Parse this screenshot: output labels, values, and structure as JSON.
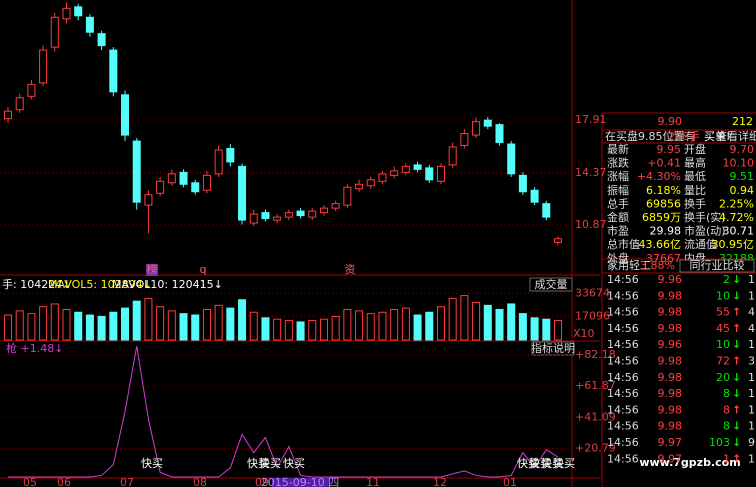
{
  "chart_data": [
    {
      "type": "candlestick",
      "candles": {
        "open": [
          18.0,
          18.6,
          19.5,
          20.4,
          22.8,
          24.7,
          25.5,
          24.8,
          23.7,
          22.6,
          19.6,
          16.5,
          12.2,
          13.0,
          13.7,
          14.4,
          13.7,
          13.2,
          14.3,
          16.0,
          14.8,
          11.0,
          11.7,
          11.2,
          11.4,
          11.8,
          11.4,
          11.7,
          12.0,
          12.2,
          13.3,
          13.5,
          13.8,
          14.2,
          14.4,
          14.9,
          14.7,
          13.8,
          14.9,
          16.2,
          16.9,
          17.9,
          17.6,
          16.3,
          14.2,
          13.2,
          12.3,
          9.7
        ],
        "high": [
          18.8,
          19.7,
          20.6,
          22.9,
          25.1,
          25.8,
          25.7,
          25.0,
          23.9,
          22.8,
          19.9,
          16.7,
          13.2,
          14.1,
          14.6,
          14.6,
          13.9,
          14.5,
          16.2,
          16.3,
          15.0,
          11.9,
          11.9,
          11.6,
          11.9,
          12.0,
          12.0,
          12.2,
          12.5,
          13.6,
          13.9,
          14.1,
          14.5,
          14.8,
          15.0,
          15.1,
          14.9,
          15.0,
          16.4,
          17.3,
          18.1,
          18.1,
          17.7,
          16.5,
          14.4,
          13.4,
          12.5,
          10.1
        ],
        "low": [
          17.7,
          18.4,
          19.3,
          20.2,
          22.5,
          24.4,
          24.6,
          23.5,
          22.6,
          19.5,
          16.5,
          11.9,
          10.3,
          12.8,
          13.5,
          13.4,
          12.9,
          13.0,
          14.1,
          14.8,
          10.9,
          10.8,
          11.1,
          11.0,
          11.2,
          11.3,
          11.2,
          11.5,
          11.8,
          12.0,
          13.1,
          13.3,
          13.6,
          14.0,
          14.2,
          14.4,
          13.7,
          13.6,
          14.7,
          16.0,
          16.7,
          17.3,
          16.2,
          14.1,
          12.9,
          12.2,
          11.2,
          9.51
        ],
        "close": [
          18.5,
          19.4,
          20.3,
          22.6,
          24.8,
          25.4,
          24.9,
          23.8,
          22.9,
          19.8,
          16.9,
          12.4,
          12.9,
          13.8,
          14.3,
          13.6,
          13.1,
          14.2,
          15.9,
          15.1,
          11.2,
          11.6,
          11.3,
          11.4,
          11.7,
          11.5,
          11.8,
          12.0,
          12.3,
          13.4,
          13.6,
          13.9,
          14.3,
          14.5,
          14.8,
          14.6,
          13.9,
          14.8,
          16.1,
          17.0,
          17.8,
          17.5,
          16.4,
          14.3,
          13.1,
          12.4,
          11.4,
          9.95
        ]
      },
      "ylim": [
        7.65,
        25.96
      ],
      "yticks": [
        17.91,
        14.37,
        10.87
      ],
      "up_color": "#ff3c3c",
      "down_color": "#54fcfc",
      "markers": [
        "榜",
        "q",
        "资"
      ]
    },
    {
      "type": "bar",
      "legend": [
        "手: 104224↓",
        "MAVOL5: 102894↓",
        "MAVOL10: 120415↓"
      ],
      "button": "成交量",
      "values": [
        18000,
        21000,
        19000,
        24000,
        26000,
        22000,
        20000,
        18000,
        17000,
        20000,
        23000,
        28000,
        30000,
        24000,
        21000,
        19000,
        18000,
        22000,
        25000,
        23000,
        29000,
        20000,
        16000,
        15000,
        14000,
        13000,
        14000,
        15000,
        17000,
        22000,
        21000,
        19000,
        20000,
        22000,
        23000,
        18000,
        20000,
        24000,
        30000,
        32000,
        27000,
        25000,
        22000,
        26000,
        19000,
        16000,
        15000,
        14000
      ],
      "ylim": [
        0,
        44700
      ],
      "yticks": [
        33674,
        17096
      ],
      "unit_label": "X10"
    },
    {
      "type": "line",
      "legend": "枪 +1.48↓",
      "button": "指标说明",
      "color": "#d040d0",
      "values": [
        2,
        2,
        2,
        2,
        2,
        2,
        2,
        2,
        3,
        10,
        45,
        88,
        40,
        5,
        2,
        2,
        2,
        2,
        2,
        8,
        30,
        18,
        28,
        8,
        22,
        3,
        2,
        2,
        2,
        2,
        2,
        2,
        2,
        2,
        2,
        2,
        2,
        2,
        4,
        6,
        3,
        2,
        2,
        3,
        18,
        8,
        20,
        15
      ],
      "ylim": [
        0,
        90.7
      ],
      "yticks": [
        {
          "value": 82.18,
          "label": "+82.18"
        },
        {
          "value": 61.87,
          "label": "+61.87"
        },
        {
          "value": 41.09,
          "label": "+41.09"
        },
        {
          "value": 20.79,
          "label": "+20.79"
        }
      ],
      "annotations": [
        "快买",
        "快买",
        "快买",
        "快买",
        "快买",
        "快买",
        "快买",
        "快买"
      ]
    }
  ],
  "x_axis_labels": [
    "05",
    "06",
    "07",
    "08",
    "09",
    "2015-09-10 四",
    "11",
    "12",
    "01"
  ],
  "quote": {
    "ask": [
      "9.90",
      "212"
    ],
    "notice": [
      "在买盘9.85位置有",
      "246手",
      "买单!",
      "查看详细"
    ],
    "rows": [
      [
        "最新",
        "9.95",
        "开盘",
        "9.70"
      ],
      [
        "涨跌",
        "+0.41",
        "最高",
        "10.10"
      ],
      [
        "涨幅",
        "+4.30%",
        "最低",
        "9.51"
      ],
      [
        "振幅",
        "6.18%",
        "量比",
        "0.94"
      ],
      [
        "总手",
        "69856",
        "换手",
        "2.25%"
      ],
      [
        "金额",
        "6859万",
        "换手(实)",
        "4.72%"
      ],
      [
        "市盈",
        "29.98",
        "市盈(动)",
        "30.71"
      ],
      [
        "总市值",
        "43.66亿",
        "流通值",
        "30.95亿"
      ],
      [
        "外盘",
        "37667",
        "内盘",
        "32188"
      ]
    ],
    "industry": [
      "家用轻工",
      "3.88%",
      "同行业比较"
    ]
  },
  "trades": [
    [
      "14:56",
      "9.96",
      "2",
      "↓",
      "1"
    ],
    [
      "14:56",
      "9.98",
      "10",
      "↓",
      "1"
    ],
    [
      "14:56",
      "9.98",
      "55",
      "↑",
      "4"
    ],
    [
      "14:56",
      "9.98",
      "45",
      "↑",
      "4"
    ],
    [
      "14:56",
      "9.96",
      "10",
      "↓",
      "1"
    ],
    [
      "14:56",
      "9.98",
      "72",
      "↑",
      "3"
    ],
    [
      "14:56",
      "9.98",
      "20",
      "↓",
      "1"
    ],
    [
      "14:56",
      "9.98",
      "8",
      "↓",
      "1"
    ],
    [
      "14:56",
      "9.98",
      "8",
      "↑",
      "1"
    ],
    [
      "14:56",
      "9.98",
      "8",
      "↓",
      "1"
    ],
    [
      "14:56",
      "9.97",
      "103",
      "↓",
      "9"
    ],
    [
      "14:56",
      "9.97",
      "1",
      "↑",
      "1"
    ]
  ],
  "watermark": "www.7gpzb.com"
}
